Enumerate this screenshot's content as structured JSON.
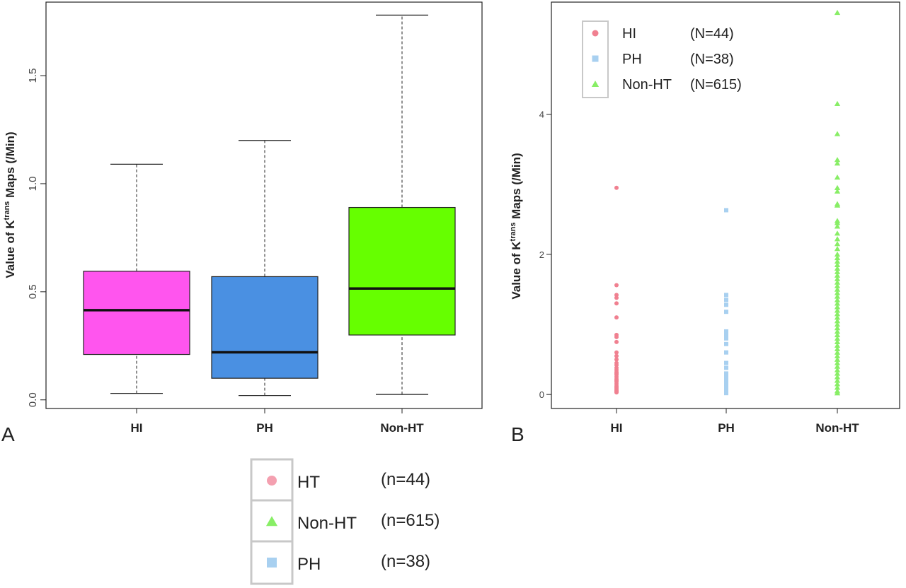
{
  "panel_a_label": "A",
  "panel_b_label": "B",
  "chart_data": [
    {
      "type": "box",
      "ylabel_prefix": "Value of K",
      "ylabel_sup": "trans",
      "ylabel_suffix": " Maps (/Min)",
      "ylim": [
        -0.04,
        1.84
      ],
      "yticks": [
        "0.0",
        "0.5",
        "1.0",
        "1.5"
      ],
      "categories": [
        "HI",
        "PH",
        "Non-HT"
      ],
      "boxes": [
        {
          "name": "HI",
          "min": 0.03,
          "q1": 0.21,
          "median": 0.415,
          "q3": 0.595,
          "max": 1.09,
          "color": "#ff55ee"
        },
        {
          "name": "PH",
          "min": 0.02,
          "q1": 0.1,
          "median": 0.22,
          "q3": 0.57,
          "max": 1.2,
          "color": "#4a90e2"
        },
        {
          "name": "Non-HT",
          "min": 0.025,
          "q1": 0.3,
          "median": 0.515,
          "q3": 0.89,
          "max": 1.78,
          "color": "#66ff00"
        }
      ]
    },
    {
      "type": "scatter",
      "ylabel_prefix": "Value of K",
      "ylabel_sup": "trans",
      "ylabel_suffix": " Maps (/Min)",
      "ylim": [
        -0.2,
        5.6
      ],
      "yticks": [
        "0",
        "2",
        "4"
      ],
      "categories": [
        "HI",
        "PH",
        "Non-HT"
      ],
      "legend": [
        {
          "label": "HI",
          "count": "(N=44)",
          "shape": "circle",
          "color": "#f08090"
        },
        {
          "label": "PH",
          "count": "(N=38)",
          "shape": "square",
          "color": "#a8d0f0"
        },
        {
          "label": "Non-HT",
          "count": "(N=615)",
          "shape": "triangle",
          "color": "#88ee66"
        }
      ],
      "series": [
        {
          "name": "HI",
          "color": "#f08090",
          "shape": "circle",
          "values": [
            2.95,
            1.56,
            1.42,
            1.38,
            1.3,
            1.1,
            0.85,
            0.82,
            0.75,
            0.6,
            0.55,
            0.5,
            0.45,
            0.42,
            0.38,
            0.35,
            0.32,
            0.3,
            0.28,
            0.25,
            0.22,
            0.2,
            0.18,
            0.15,
            0.12,
            0.1,
            0.08,
            0.06,
            0.05,
            0.04,
            0.03
          ]
        },
        {
          "name": "PH",
          "color": "#a8d0f0",
          "shape": "square",
          "values": [
            2.63,
            1.42,
            1.35,
            1.28,
            1.18,
            0.9,
            0.85,
            0.8,
            0.72,
            0.6,
            0.45,
            0.38,
            0.3,
            0.28,
            0.25,
            0.22,
            0.2,
            0.18,
            0.15,
            0.12,
            0.1,
            0.08,
            0.06,
            0.05,
            0.04,
            0.03,
            0.02
          ]
        },
        {
          "name": "Non-HT",
          "color": "#88ee66",
          "shape": "triangle",
          "values": [
            5.45,
            4.15,
            3.72,
            3.35,
            3.3,
            3.1,
            2.95,
            2.9,
            2.72,
            2.7,
            2.48,
            2.45,
            2.4,
            2.3,
            2.22,
            2.15,
            2.08,
            2.0,
            1.95,
            1.9,
            1.85,
            1.8,
            1.75,
            1.7,
            1.65,
            1.6,
            1.55,
            1.5,
            1.45,
            1.4,
            1.35,
            1.3,
            1.25,
            1.2,
            1.15,
            1.1,
            1.05,
            1.0,
            0.95,
            0.9,
            0.85,
            0.8,
            0.75,
            0.7,
            0.65,
            0.6,
            0.55,
            0.5,
            0.45,
            0.4,
            0.35,
            0.3,
            0.25,
            0.2,
            0.15,
            0.1,
            0.05,
            0.02
          ]
        }
      ]
    }
  ],
  "bottom_legend": [
    {
      "label": "HT",
      "count": "(n=44)",
      "shape": "circle",
      "color": "#f4a0b0"
    },
    {
      "label": "Non-HT",
      "count": "(n=615)",
      "shape": "triangle",
      "color": "#88ee66"
    },
    {
      "label": "PH",
      "count": "(n=38)",
      "shape": "square",
      "color": "#a8d0f0"
    }
  ]
}
